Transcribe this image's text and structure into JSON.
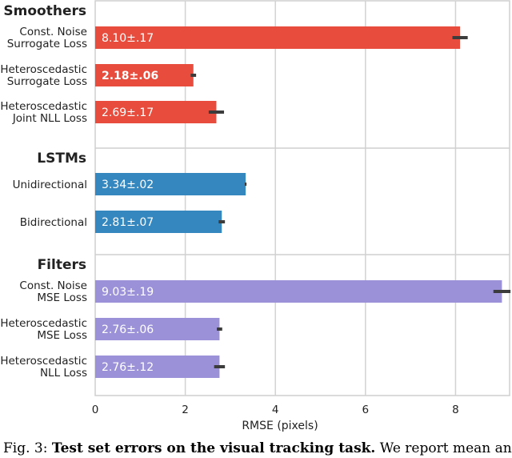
{
  "chart_data": {
    "type": "bar",
    "orientation": "horizontal",
    "xlabel": "RMSE (pixels)",
    "xlim": [
      0,
      9.2
    ],
    "xticks": [
      0,
      2,
      4,
      6,
      8
    ],
    "grid": true,
    "groups": [
      {
        "title": "Smoothers",
        "color": "#e74c3c",
        "bars": [
          {
            "label": [
              "Const. Noise",
              "Surrogate Loss"
            ],
            "value": 8.1,
            "err": 0.17,
            "text": "8.10±.17",
            "bold": false
          },
          {
            "label": [
              "Heteroscedastic",
              "Surrogate Loss"
            ],
            "value": 2.18,
            "err": 0.06,
            "text": "2.18±.06",
            "bold": true
          },
          {
            "label": [
              "Heteroscedastic",
              "Joint NLL Loss"
            ],
            "value": 2.69,
            "err": 0.17,
            "text": "2.69±.17",
            "bold": false
          }
        ]
      },
      {
        "title": "LSTMs",
        "color": "#3587bf",
        "bars": [
          {
            "label": [
              "Unidirectional"
            ],
            "value": 3.34,
            "err": 0.02,
            "text": "3.34±.02",
            "bold": false
          },
          {
            "label": [
              "Bidirectional"
            ],
            "value": 2.81,
            "err": 0.07,
            "text": "2.81±.07",
            "bold": false
          }
        ]
      },
      {
        "title": "Filters",
        "color": "#9b91d8",
        "bars": [
          {
            "label": [
              "Const. Noise",
              "MSE Loss"
            ],
            "value": 9.03,
            "err": 0.19,
            "text": "9.03±.19",
            "bold": false
          },
          {
            "label": [
              "Heteroscedastic",
              "MSE Loss"
            ],
            "value": 2.76,
            "err": 0.06,
            "text": "2.76±.06",
            "bold": false
          },
          {
            "label": [
              "Heteroscedastic",
              "NLL Loss"
            ],
            "value": 2.76,
            "err": 0.12,
            "text": "2.76±.12",
            "bold": false
          }
        ]
      }
    ]
  },
  "caption": {
    "prefix": "Fig. 3:",
    "bold": "Test set errors on the visual tracking task.",
    "rest": "We report mean and"
  }
}
